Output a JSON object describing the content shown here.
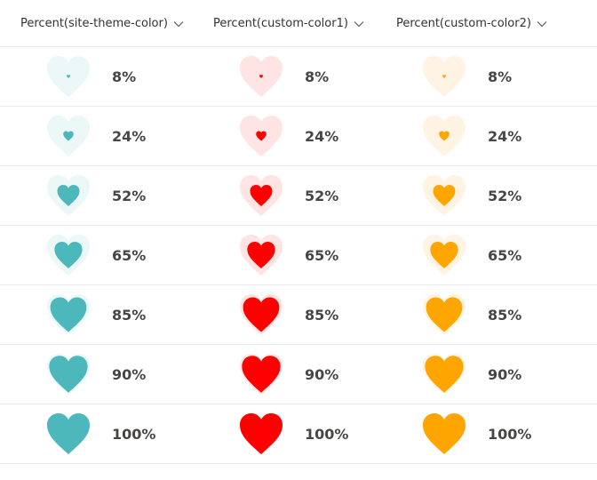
{
  "columns": [
    {
      "label": "Percent(site-theme-color)",
      "icon": "chevron-down-icon",
      "color": "#4db8bb",
      "track_color": "#ecf7f8"
    },
    {
      "label": "Percent(custom-color1)",
      "icon": "chevron-down-icon",
      "color": "#ff0000",
      "track_color": "#ffe4e4"
    },
    {
      "label": "Percent(custom-color2)",
      "icon": "chevron-down-icon",
      "color": "#ffa500",
      "track_color": "#fff4e3"
    }
  ],
  "rows": [
    {
      "percent_label": "8%",
      "value": 0.08
    },
    {
      "percent_label": "24%",
      "value": 0.24
    },
    {
      "percent_label": "52%",
      "value": 0.52
    },
    {
      "percent_label": "65%",
      "value": 0.65
    },
    {
      "percent_label": "85%",
      "value": 0.85
    },
    {
      "percent_label": "90%",
      "value": 0.9
    },
    {
      "percent_label": "100%",
      "value": 1.0
    }
  ]
}
